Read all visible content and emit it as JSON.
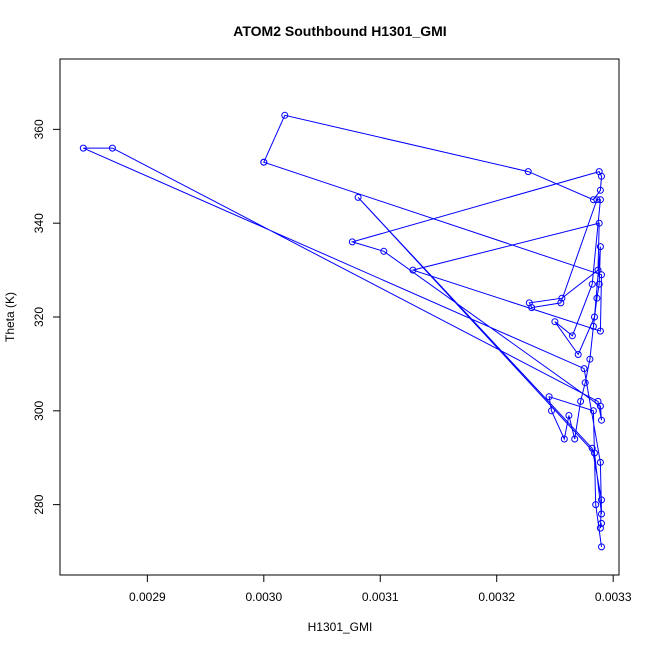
{
  "chart_data": {
    "type": "scatter",
    "title": "ATOM2 Southbound H1301_GMI",
    "xlabel": "H1301_GMI",
    "ylabel": "Theta (K)",
    "xlim": [
      0.002825,
      0.003305
    ],
    "ylim": [
      265,
      375
    ],
    "x_ticks": [
      0.0029,
      0.003,
      0.0031,
      0.0032,
      0.0033
    ],
    "x_tick_labels": [
      "0.0029",
      "0.0030",
      "0.0031",
      "0.0032",
      "0.0033"
    ],
    "y_ticks": [
      280,
      300,
      320,
      340,
      360
    ],
    "y_tick_labels": [
      "280",
      "300",
      "320",
      "340",
      "360"
    ],
    "grid": false,
    "legend": "none",
    "colors": {
      "series": "#0000ff",
      "frame": "#000000",
      "background": "#ffffff"
    },
    "series": [
      {
        "x": [
          0.00329,
          0.003285,
          0.003283,
          0.003245,
          0.003247,
          0.003258,
          0.003262,
          0.003267,
          0.003272,
          0.003276,
          0.00328,
          0.003283,
          0.003286,
          0.003288,
          0.003289,
          0.003284,
          0.00327,
          0.00325,
          0.003265,
          0.003282,
          0.003289,
          0.003286,
          0.003255,
          0.00323,
          0.003228,
          0.003256,
          0.003287,
          0.003288,
          0.003128,
          0.003289,
          0.00329,
          0.003,
          0.003,
          0.003018,
          0.003227,
          0.003283,
          0.003289,
          0.00329,
          0.003288,
          0.003076,
          0.003103,
          0.003289,
          0.00329,
          0.003287,
          0.00287,
          0.002845,
          0.003275,
          0.003289,
          0.00329,
          0.003284,
          0.003081,
          0.003282,
          0.00329,
          0.003289,
          0.00329
        ],
        "y": [
          271,
          280,
          300,
          303,
          300,
          294,
          299,
          294,
          302,
          306,
          311,
          318,
          324,
          327,
          335,
          320,
          312,
          319,
          316,
          327,
          345,
          345,
          323,
          322,
          323,
          324,
          330,
          340,
          330,
          317,
          329,
          353,
          353,
          363,
          351,
          345,
          347,
          350,
          351,
          336,
          334,
          301,
          298,
          302,
          356,
          356,
          309,
          289,
          278,
          291,
          345.5,
          292,
          281,
          275,
          276
        ]
      }
    ]
  }
}
